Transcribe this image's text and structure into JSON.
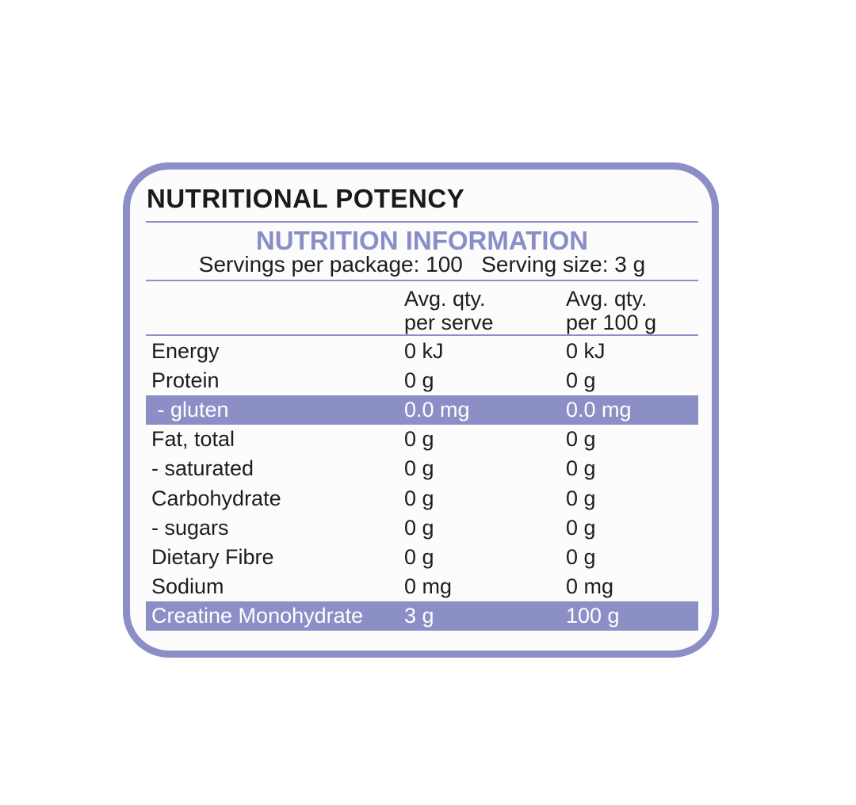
{
  "panel": {
    "heading": "NUTRITIONAL POTENCY",
    "subheading": "NUTRITION INFORMATION",
    "servings_text": "Servings per package: 100   Serving size: 3 g",
    "accent_color": "#8c8fc6",
    "columns": {
      "per_serve_line1": "Avg. qty.",
      "per_serve_line2": "per serve",
      "per_100_line1": "Avg. qty.",
      "per_100_line2": "per 100 g"
    },
    "rows": [
      {
        "name": "Energy",
        "per_serve": "0 kJ",
        "per_100g": "0 kJ",
        "highlighted": false
      },
      {
        "name": "Protein",
        "per_serve": "0 g",
        "per_100g": "0 g",
        "highlighted": false
      },
      {
        "name": " - gluten",
        "per_serve": "0.0 mg",
        "per_100g": "0.0 mg",
        "highlighted": true
      },
      {
        "name": "Fat, total",
        "per_serve": "0 g",
        "per_100g": "0 g",
        "highlighted": false
      },
      {
        "name": "- saturated",
        "per_serve": "0 g",
        "per_100g": "0 g",
        "highlighted": false
      },
      {
        "name": "Carbohydrate",
        "per_serve": "0 g",
        "per_100g": "0 g",
        "highlighted": false
      },
      {
        "name": "- sugars",
        "per_serve": "0 g",
        "per_100g": "0 g",
        "highlighted": false
      },
      {
        "name": "Dietary Fibre",
        "per_serve": "0 g",
        "per_100g": "0 g",
        "highlighted": false
      },
      {
        "name": "Sodium",
        "per_serve": "0 mg",
        "per_100g": "0 mg",
        "highlighted": false
      },
      {
        "name": "Creatine Monohydrate",
        "per_serve": "3 g",
        "per_100g": "100 g",
        "highlighted": true
      }
    ]
  }
}
